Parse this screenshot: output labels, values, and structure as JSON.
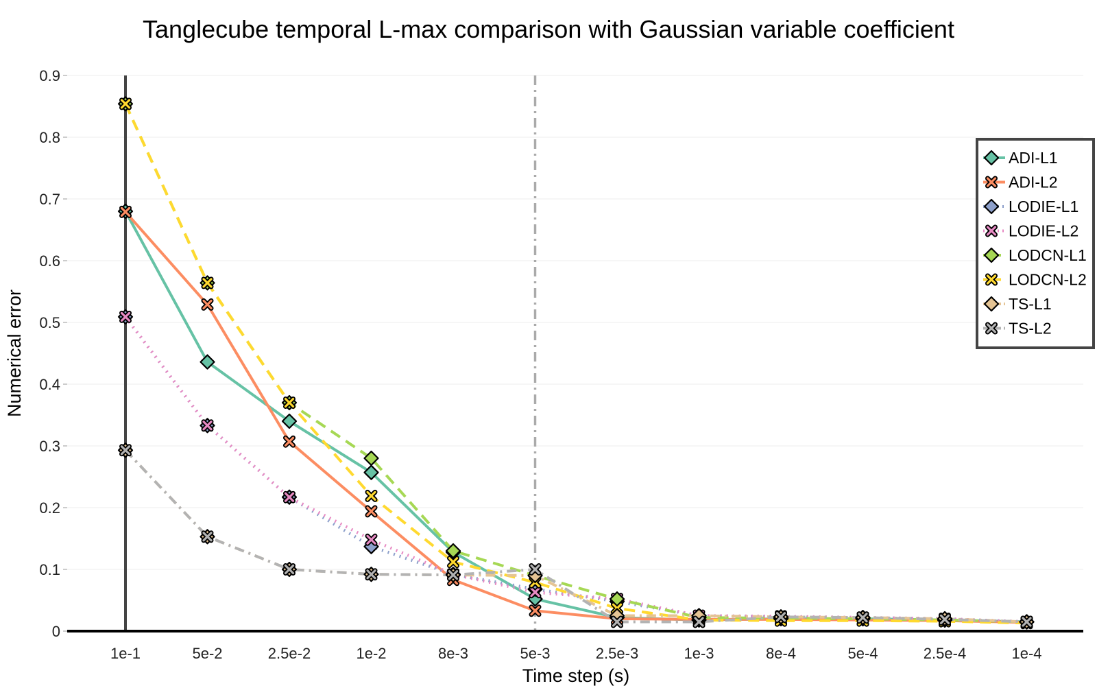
{
  "chart_data": {
    "type": "line",
    "title": "Tanglecube temporal L-max comparison with Gaussian variable coefficient",
    "xlabel": "Time step (s)",
    "ylabel": "Numerical error",
    "categories": [
      "1e-1",
      "5e-2",
      "2.5e-2",
      "1e-2",
      "8e-3",
      "5e-3",
      "2.5e-3",
      "1e-3",
      "8e-4",
      "5e-4",
      "2.5e-4",
      "1e-4"
    ],
    "ylim": [
      0,
      0.9
    ],
    "yticks": [
      "0",
      "0.1",
      "0.2",
      "0.3",
      "0.4",
      "0.5",
      "0.6",
      "0.7",
      "0.8",
      "0.9"
    ],
    "grid": true,
    "legend_position": "top-right",
    "vertical_markers": [
      {
        "category": "1e-1",
        "style": "solid",
        "color": "#444444"
      },
      {
        "category": "5e-3",
        "style": "dashdot",
        "color": "#aaaaaa"
      }
    ],
    "series": [
      {
        "name": "ADI-L1",
        "color": "#66c2a5",
        "dash": "solid",
        "marker": "diamond",
        "values": [
          0.68,
          0.436,
          0.34,
          0.257,
          0.128,
          0.052,
          0.022,
          0.018,
          0.02,
          0.02,
          0.018,
          0.015
        ]
      },
      {
        "name": "ADI-L2",
        "color": "#fc8d62",
        "dash": "solid",
        "marker": "x",
        "values": [
          0.679,
          0.529,
          0.307,
          0.194,
          0.083,
          0.033,
          0.02,
          0.019,
          0.019,
          0.018,
          0.017,
          0.014
        ]
      },
      {
        "name": "LODIE-L1",
        "color": "#8da0cb",
        "dash": "dot",
        "marker": "diamond",
        "values": [
          0.509,
          0.333,
          0.217,
          0.137,
          0.092,
          0.068,
          0.048,
          0.025,
          0.023,
          0.022,
          0.02,
          0.015
        ]
      },
      {
        "name": "LODIE-L2",
        "color": "#e78ac3",
        "dash": "dot",
        "marker": "x",
        "values": [
          0.509,
          0.333,
          0.217,
          0.148,
          0.092,
          0.063,
          0.052,
          0.025,
          0.024,
          0.022,
          0.02,
          0.015
        ]
      },
      {
        "name": "LODCN-L1",
        "color": "#a6d854",
        "dash": "dash",
        "marker": "diamond",
        "values": [
          0.854,
          0.564,
          0.37,
          0.28,
          0.13,
          0.09,
          0.052,
          0.022,
          0.021,
          0.02,
          0.018,
          0.015
        ]
      },
      {
        "name": "LODCN-L2",
        "color": "#ffd92f",
        "dash": "dash",
        "marker": "x",
        "values": [
          0.854,
          0.564,
          0.37,
          0.219,
          0.112,
          0.079,
          0.037,
          0.018,
          0.017,
          0.017,
          0.016,
          0.013
        ]
      },
      {
        "name": "TS-L1",
        "color": "#e5c494",
        "dash": "dashdot",
        "marker": "diamond",
        "values": [
          0.293,
          0.153,
          0.1,
          0.092,
          0.091,
          0.09,
          0.025,
          0.025,
          0.023,
          0.022,
          0.02,
          0.015
        ]
      },
      {
        "name": "TS-L2",
        "color": "#b3b3b3",
        "dash": "dashdot",
        "marker": "x",
        "values": [
          0.293,
          0.153,
          0.1,
          0.092,
          0.091,
          0.1,
          0.015,
          0.015,
          0.023,
          0.022,
          0.019,
          0.015
        ]
      }
    ]
  }
}
